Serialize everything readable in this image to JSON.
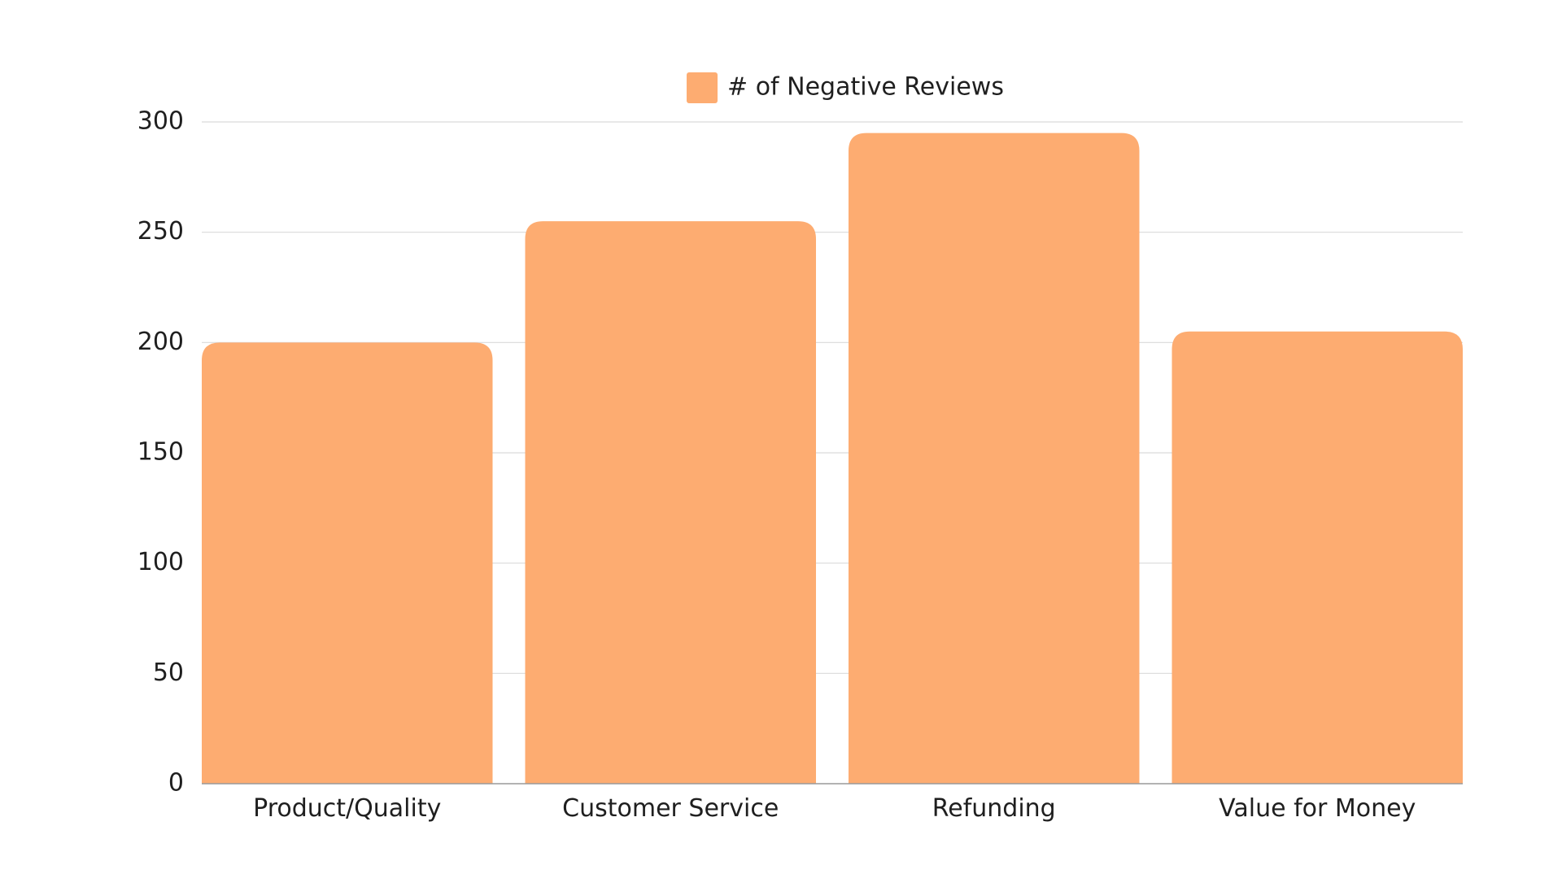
{
  "chart_data": {
    "type": "bar",
    "categories": [
      "Product/Quality",
      "Customer Service",
      "Refunding",
      "Value for Money"
    ],
    "series": [
      {
        "name": "# of Negative Reviews",
        "values": [
          200,
          255,
          295,
          205
        ],
        "color": "#FDAC71"
      }
    ],
    "title": "",
    "xlabel": "",
    "ylabel": "",
    "ylim": [
      0,
      300
    ],
    "yticks": [
      0,
      50,
      100,
      150,
      200,
      250,
      300
    ],
    "grid": true,
    "legend": "top-center"
  }
}
